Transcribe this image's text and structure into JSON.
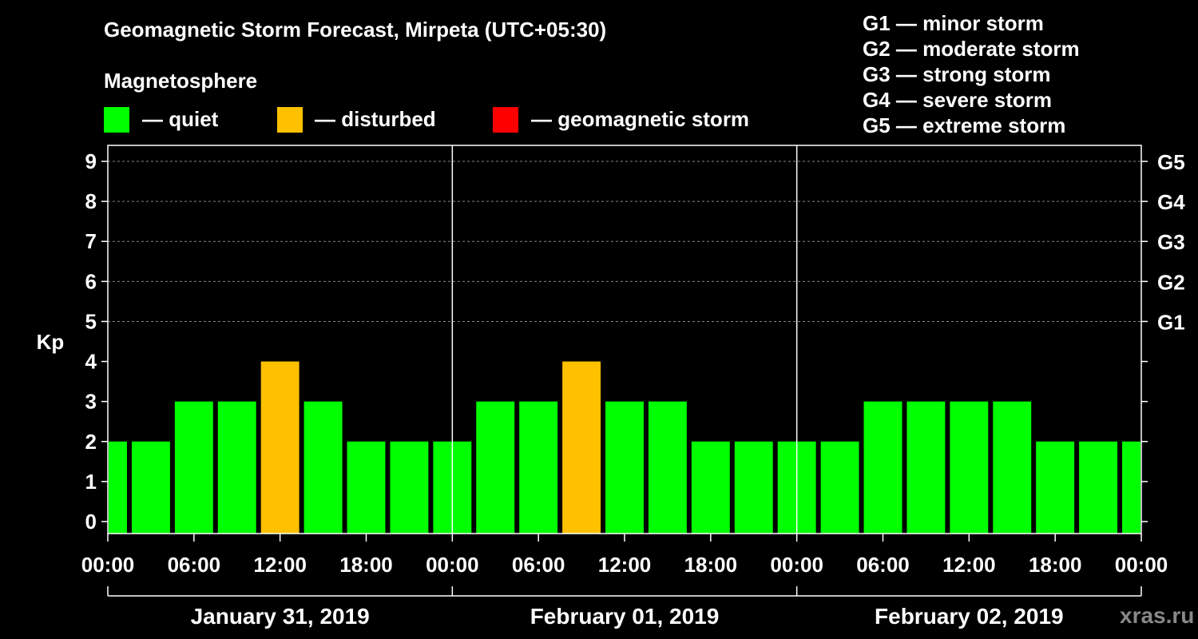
{
  "title": "Geomagnetic Storm Forecast, Mirpeta (UTC+05:30)",
  "subtitle": "Magnetosphere",
  "legend": [
    {
      "label": "— quiet",
      "color": "#00ff00"
    },
    {
      "label": "— disturbed",
      "color": "#ffc000"
    },
    {
      "label": "— geomagnetic storm",
      "color": "#ff0000"
    }
  ],
  "storm_scale": [
    "G1 — minor storm",
    "G2 — moderate storm",
    "G3 — strong storm",
    "G4 — severe storm",
    "G5 — extreme storm"
  ],
  "watermark": "xras.ru",
  "colors": {
    "quiet": "#00ff00",
    "disturbed": "#ffc000",
    "storm": "#ff0000",
    "grid": "#888888",
    "axis": "#ffffff",
    "background": "#000000"
  },
  "chart_data": {
    "type": "bar",
    "ylabel": "Kp",
    "ylim": [
      -0.3,
      9.4
    ],
    "yticks": [
      0,
      1,
      2,
      3,
      4,
      5,
      6,
      7,
      8,
      9
    ],
    "g_levels": [
      {
        "label": "G1",
        "kp": 5
      },
      {
        "label": "G2",
        "kp": 6
      },
      {
        "label": "G3",
        "kp": 7
      },
      {
        "label": "G4",
        "kp": 8
      },
      {
        "label": "G5",
        "kp": 9
      }
    ],
    "x_range_hours": [
      0,
      72
    ],
    "x_ticks": [
      {
        "hour": 0,
        "label": "00:00"
      },
      {
        "hour": 6,
        "label": "06:00"
      },
      {
        "hour": 12,
        "label": "12:00"
      },
      {
        "hour": 18,
        "label": "18:00"
      },
      {
        "hour": 24,
        "label": "00:00"
      },
      {
        "hour": 30,
        "label": "06:00"
      },
      {
        "hour": 36,
        "label": "12:00"
      },
      {
        "hour": 42,
        "label": "18:00"
      },
      {
        "hour": 48,
        "label": "00:00"
      },
      {
        "hour": 54,
        "label": "06:00"
      },
      {
        "hour": 60,
        "label": "12:00"
      },
      {
        "hour": 66,
        "label": "18:00"
      },
      {
        "hour": 72,
        "label": "00:00"
      }
    ],
    "days": [
      {
        "label": "January 31, 2019",
        "start_hour": 0,
        "end_hour": 24
      },
      {
        "label": "February 01, 2019",
        "start_hour": 24,
        "end_hour": 48
      },
      {
        "label": "February 02, 2019",
        "start_hour": 48,
        "end_hour": 72
      }
    ],
    "bars": [
      {
        "start_hour": 0,
        "end_hour": 1.5,
        "kp": 2,
        "status": "quiet"
      },
      {
        "start_hour": 1.5,
        "end_hour": 4.5,
        "kp": 2,
        "status": "quiet"
      },
      {
        "start_hour": 4.5,
        "end_hour": 7.5,
        "kp": 3,
        "status": "quiet"
      },
      {
        "start_hour": 7.5,
        "end_hour": 10.5,
        "kp": 3,
        "status": "quiet"
      },
      {
        "start_hour": 10.5,
        "end_hour": 13.5,
        "kp": 4,
        "status": "disturbed"
      },
      {
        "start_hour": 13.5,
        "end_hour": 16.5,
        "kp": 3,
        "status": "quiet"
      },
      {
        "start_hour": 16.5,
        "end_hour": 19.5,
        "kp": 2,
        "status": "quiet"
      },
      {
        "start_hour": 19.5,
        "end_hour": 22.5,
        "kp": 2,
        "status": "quiet"
      },
      {
        "start_hour": 22.5,
        "end_hour": 25.5,
        "kp": 2,
        "status": "quiet"
      },
      {
        "start_hour": 25.5,
        "end_hour": 28.5,
        "kp": 3,
        "status": "quiet"
      },
      {
        "start_hour": 28.5,
        "end_hour": 31.5,
        "kp": 3,
        "status": "quiet"
      },
      {
        "start_hour": 31.5,
        "end_hour": 34.5,
        "kp": 4,
        "status": "disturbed"
      },
      {
        "start_hour": 34.5,
        "end_hour": 37.5,
        "kp": 3,
        "status": "quiet"
      },
      {
        "start_hour": 37.5,
        "end_hour": 40.5,
        "kp": 3,
        "status": "quiet"
      },
      {
        "start_hour": 40.5,
        "end_hour": 43.5,
        "kp": 2,
        "status": "quiet"
      },
      {
        "start_hour": 43.5,
        "end_hour": 46.5,
        "kp": 2,
        "status": "quiet"
      },
      {
        "start_hour": 46.5,
        "end_hour": 49.5,
        "kp": 2,
        "status": "quiet"
      },
      {
        "start_hour": 49.5,
        "end_hour": 52.5,
        "kp": 2,
        "status": "quiet"
      },
      {
        "start_hour": 52.5,
        "end_hour": 55.5,
        "kp": 3,
        "status": "quiet"
      },
      {
        "start_hour": 55.5,
        "end_hour": 58.5,
        "kp": 3,
        "status": "quiet"
      },
      {
        "start_hour": 58.5,
        "end_hour": 61.5,
        "kp": 3,
        "status": "quiet"
      },
      {
        "start_hour": 61.5,
        "end_hour": 64.5,
        "kp": 3,
        "status": "quiet"
      },
      {
        "start_hour": 64.5,
        "end_hour": 67.5,
        "kp": 2,
        "status": "quiet"
      },
      {
        "start_hour": 67.5,
        "end_hour": 70.5,
        "kp": 2,
        "status": "quiet"
      },
      {
        "start_hour": 70.5,
        "end_hour": 72,
        "kp": 2,
        "status": "quiet"
      }
    ]
  }
}
